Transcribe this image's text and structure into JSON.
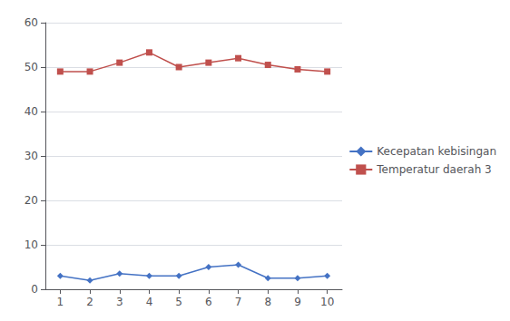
{
  "chart_data": {
    "type": "line",
    "x": [
      1,
      2,
      3,
      4,
      5,
      6,
      7,
      8,
      9,
      10
    ],
    "series": [
      {
        "name": "Kecepatan kebisingan",
        "color": "#4472C4",
        "marker": "diamond",
        "values": [
          3.0,
          2.0,
          3.5,
          3.0,
          3.0,
          5.0,
          5.5,
          2.5,
          2.5,
          3.0
        ]
      },
      {
        "name": "Temperatur daerah 3",
        "color": "#C0504D",
        "marker": "square",
        "values": [
          49.0,
          49.0,
          51.0,
          53.3,
          50.0,
          51.0,
          52.0,
          50.5,
          49.5,
          49.0
        ]
      }
    ],
    "xlim": [
      0.5,
      10.5
    ],
    "xticks": [
      1,
      2,
      3,
      4,
      5,
      6,
      7,
      8,
      9,
      10
    ],
    "ylim": [
      0,
      60
    ],
    "yticks": [
      0,
      10,
      20,
      30,
      40,
      50,
      60
    ],
    "grid": true,
    "legend": "right"
  }
}
